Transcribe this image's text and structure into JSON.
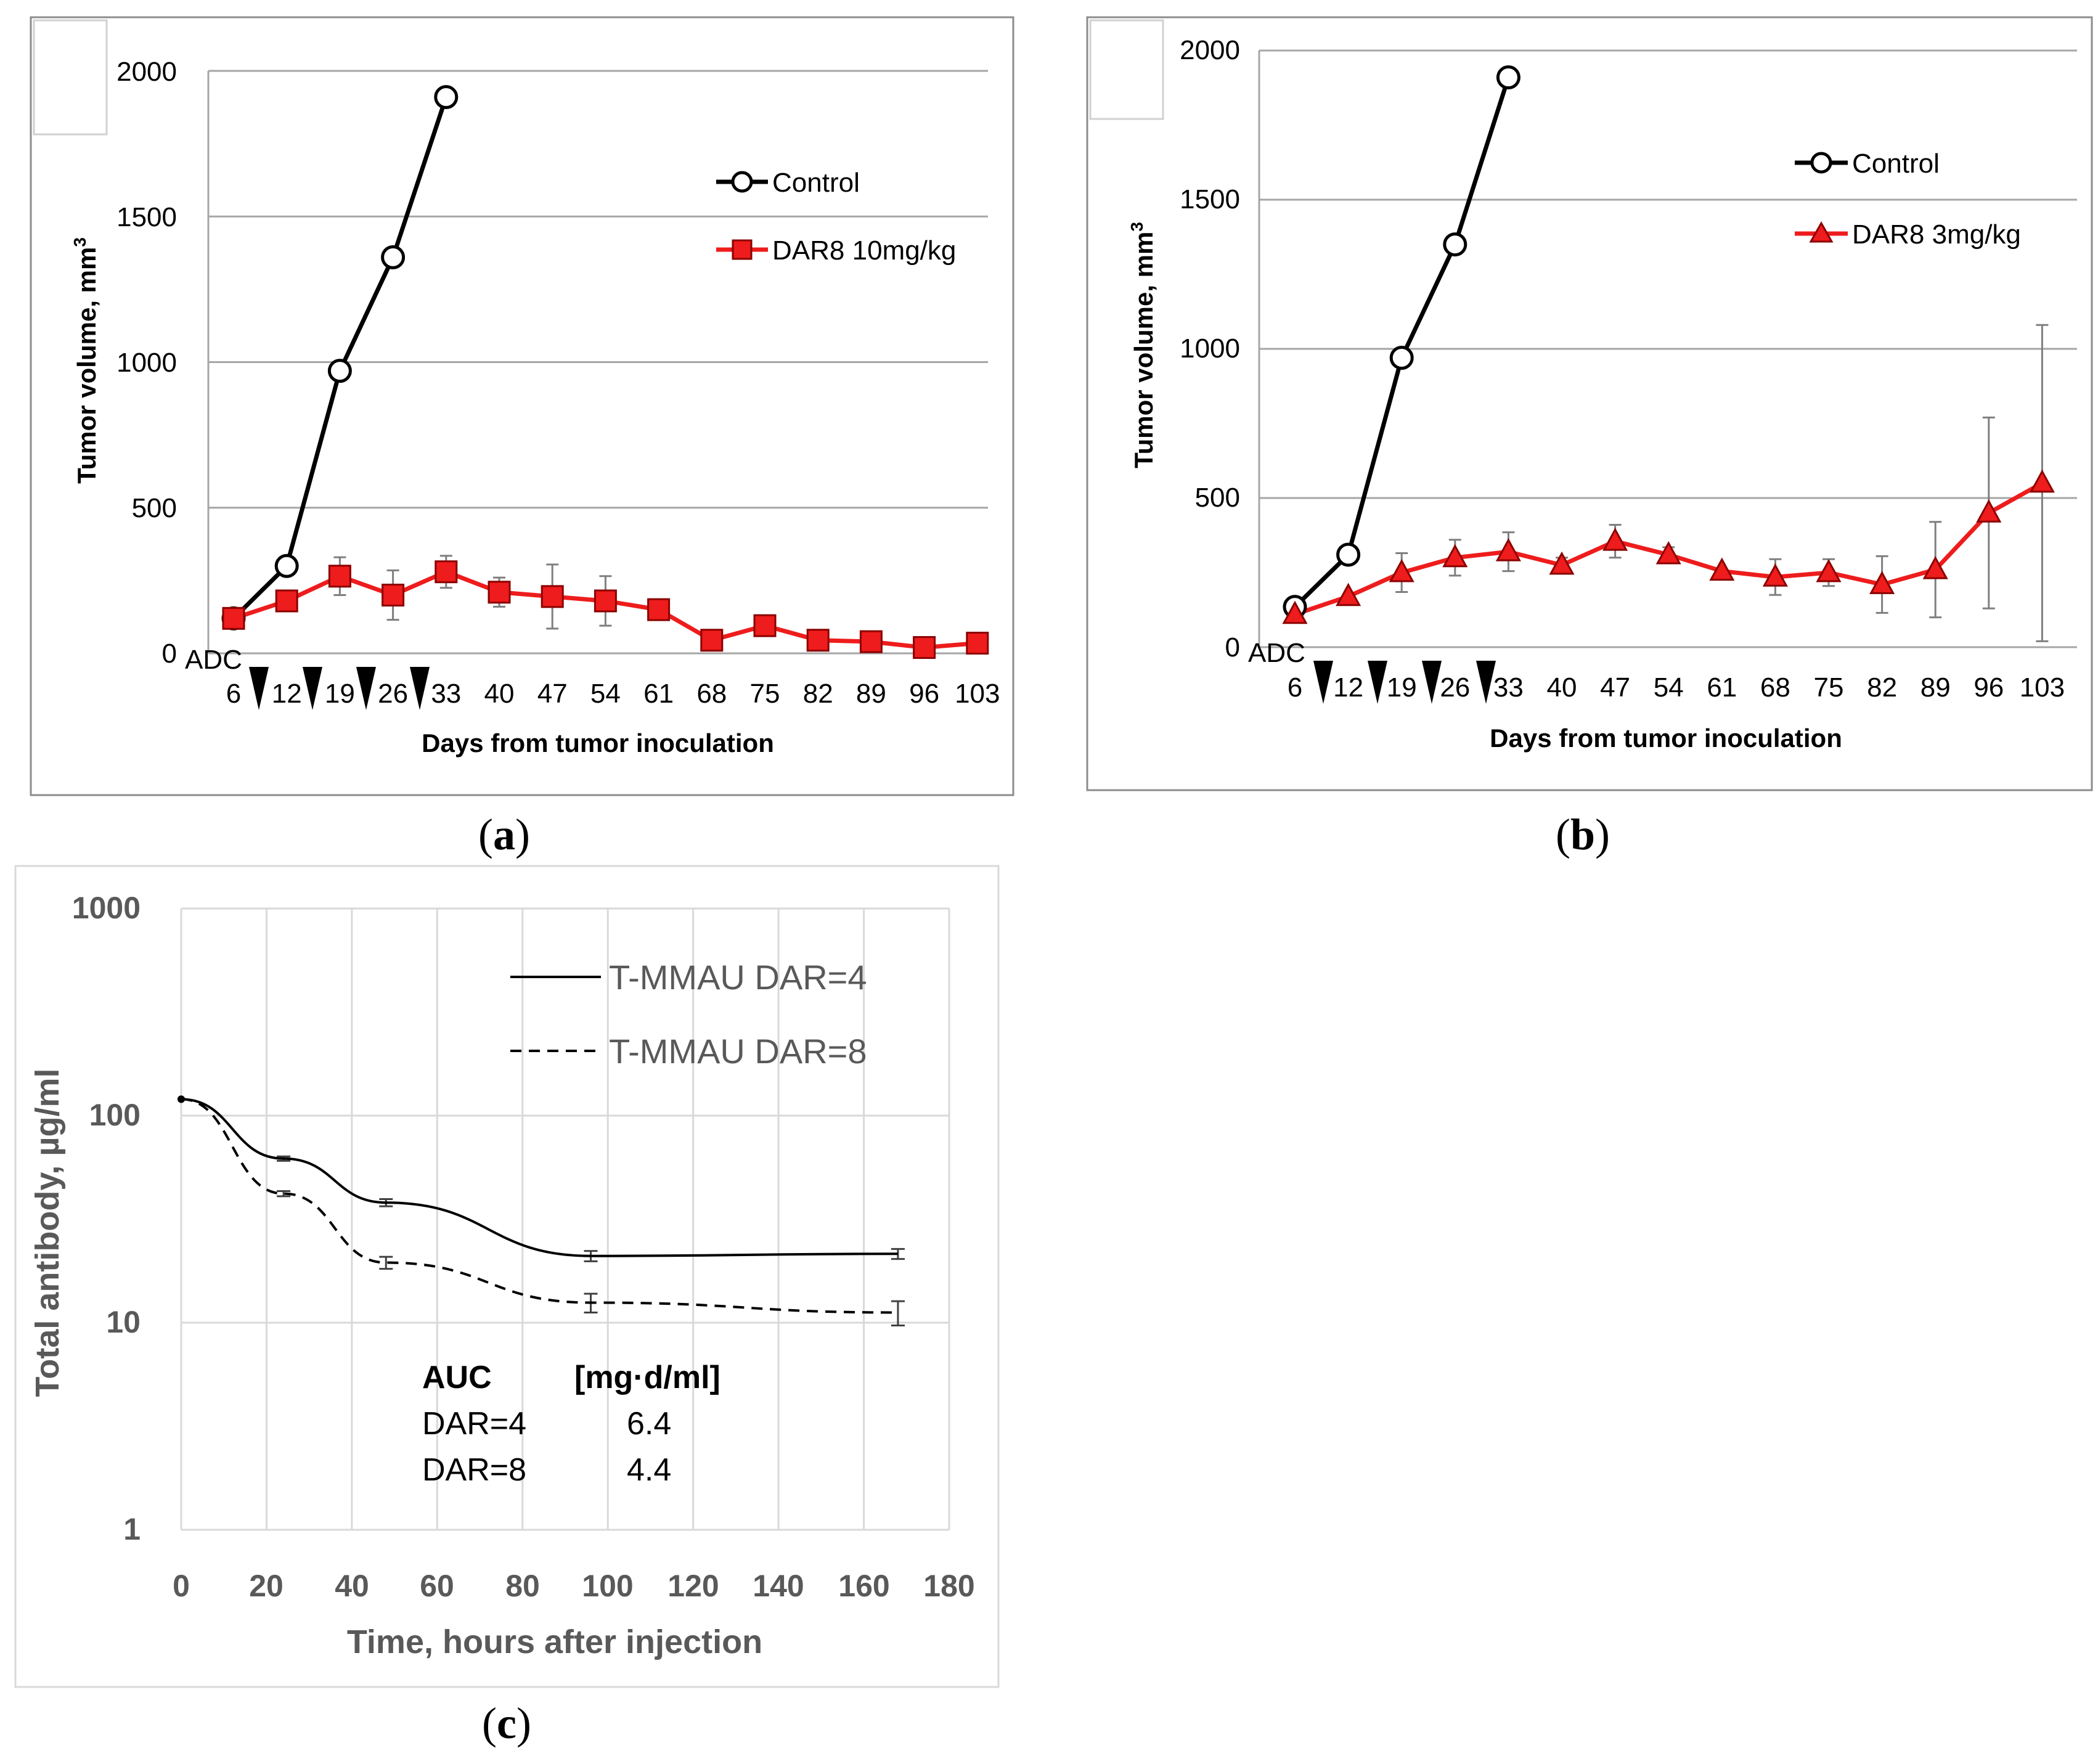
{
  "panel_labels": {
    "a": "a",
    "b": "b",
    "c": "c"
  },
  "colors": {
    "treated": "#ee1c1c",
    "control": "#000000",
    "grid": "#a6a6a6",
    "frame": "#8c8c8c",
    "text_c": "#595959"
  },
  "chart_data": [
    {
      "id": "a",
      "type": "line",
      "title": "",
      "xlabel": "Days from tumor inoculation",
      "ylabel": "Tumor volume, mm",
      "ylabel_sup": "3",
      "ylim": [
        0,
        2000
      ],
      "yticks": [
        "0",
        "500",
        "1000",
        "1500",
        "2000"
      ],
      "categories": [
        "6",
        "12",
        "19",
        "26",
        "33",
        "40",
        "47",
        "54",
        "61",
        "68",
        "75",
        "82",
        "89",
        "96",
        "103"
      ],
      "dosing_label": "ADC",
      "dosing_marker_count": 4,
      "series": [
        {
          "name": "Control",
          "marker": "circle",
          "values": [
            120,
            300,
            970,
            1360,
            1910,
            null,
            null,
            null,
            null,
            null,
            null,
            null,
            null,
            null,
            null
          ],
          "errors": [
            0,
            0,
            0,
            0,
            0,
            null,
            null,
            null,
            null,
            null,
            null,
            null,
            null,
            null,
            null
          ]
        },
        {
          "name": "DAR8 10mg/kg",
          "marker": "square",
          "values": [
            120,
            180,
            265,
            200,
            280,
            210,
            195,
            180,
            150,
            45,
            95,
            45,
            40,
            20,
            35
          ],
          "errors": [
            10,
            20,
            65,
            85,
            55,
            50,
            110,
            85,
            0,
            0,
            0,
            0,
            0,
            0,
            0
          ]
        }
      ]
    },
    {
      "id": "b",
      "type": "line",
      "title": "",
      "xlabel": "Days from tumor inoculation",
      "ylabel": "Tumor volume, mm",
      "ylabel_sup": "3",
      "ylim": [
        0,
        2000
      ],
      "yticks": [
        "0",
        "500",
        "1000",
        "1500",
        "2000"
      ],
      "categories": [
        "6",
        "12",
        "19",
        "26",
        "33",
        "40",
        "47",
        "54",
        "61",
        "68",
        "75",
        "82",
        "89",
        "96",
        "103"
      ],
      "dosing_label": "ADC",
      "dosing_marker_count": 4,
      "series": [
        {
          "name": "Control",
          "marker": "circle",
          "values": [
            135,
            310,
            970,
            1350,
            1910,
            null,
            null,
            null,
            null,
            null,
            null,
            null,
            null,
            null,
            null
          ],
          "errors": [
            0,
            0,
            0,
            0,
            0,
            null,
            null,
            null,
            null,
            null,
            null,
            null,
            null,
            null,
            null
          ]
        },
        {
          "name": "DAR8 3mg/kg",
          "marker": "triangle",
          "values": [
            110,
            170,
            250,
            300,
            320,
            275,
            355,
            310,
            255,
            235,
            250,
            210,
            260,
            450,
            550
          ],
          "errors": [
            0,
            0,
            65,
            60,
            65,
            25,
            55,
            25,
            0,
            60,
            45,
            95,
            160,
            320,
            530
          ]
        }
      ]
    },
    {
      "id": "c",
      "type": "line",
      "yscale": "log",
      "title": "",
      "xlabel": "Time, hours after injection",
      "ylabel": "Total antibody, µg/ml",
      "xlim": [
        0,
        180
      ],
      "ylim": [
        1,
        1000
      ],
      "xticks": [
        "0",
        "20",
        "40",
        "60",
        "80",
        "100",
        "120",
        "140",
        "160",
        "180"
      ],
      "yticks": [
        "1",
        "10",
        "100",
        "1000"
      ],
      "series": [
        {
          "name": "T-MMAU DAR=4",
          "style": "solid",
          "x": [
            0,
            24,
            48,
            96,
            168
          ],
          "values": [
            120,
            62,
            38,
            21,
            21.5
          ],
          "errors": [
            0,
            1.5,
            1.5,
            1.2,
            1.2
          ]
        },
        {
          "name": "T-MMAU DAR=8",
          "style": "dashed",
          "x": [
            0,
            24,
            48,
            96,
            168
          ],
          "values": [
            120,
            42,
            19.5,
            12.5,
            11.2
          ],
          "errors": [
            0,
            1.2,
            1.3,
            1.3,
            1.5
          ]
        }
      ],
      "table": {
        "header": [
          "AUC",
          "[mg·d/ml]"
        ],
        "rows": [
          [
            "DAR=4",
            "6.4"
          ],
          [
            "DAR=8",
            "4.4"
          ]
        ]
      }
    }
  ]
}
